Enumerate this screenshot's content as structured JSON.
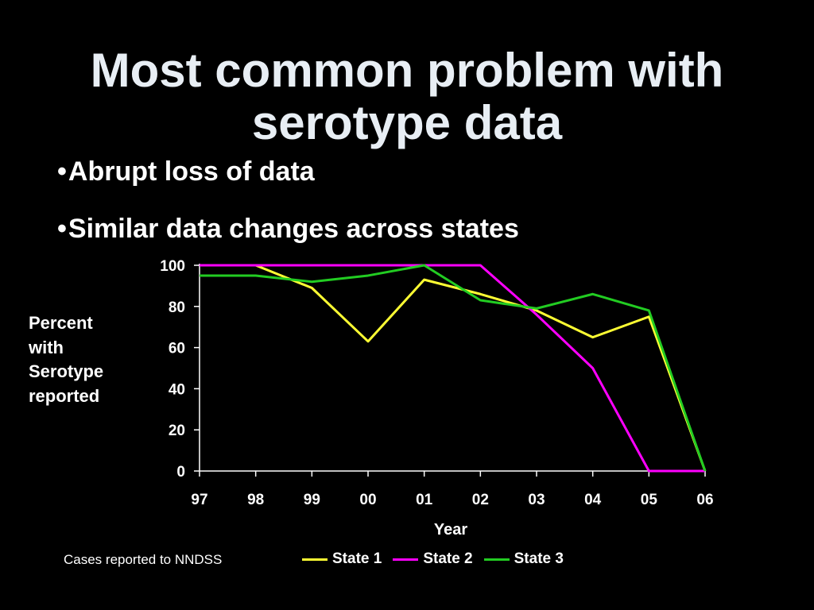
{
  "slide": {
    "title_line1": "Most common problem with",
    "title_line2": "serotype data",
    "bullets": [
      "Abrupt loss of data",
      "Similar data changes across states"
    ],
    "ylabel_lines": [
      "Percent",
      "with",
      "Serotype",
      "reported"
    ],
    "source_note": "Cases reported to NNDSS"
  },
  "chart_data": {
    "type": "line",
    "title": "",
    "xlabel": "Year",
    "ylabel": "Percent with Serotype reported",
    "categories": [
      "97",
      "98",
      "99",
      "00",
      "01",
      "02",
      "03",
      "04",
      "05",
      "06"
    ],
    "ylim": [
      0,
      100
    ],
    "yticks": [
      0,
      20,
      40,
      60,
      80,
      100
    ],
    "grid": false,
    "legend_position": "bottom",
    "series": [
      {
        "name": "State 1",
        "color": "#ffff33",
        "values": [
          100,
          100,
          89,
          63,
          93,
          86,
          78,
          65,
          75,
          0
        ]
      },
      {
        "name": "State 2",
        "color": "#ff00ff",
        "values": [
          100,
          100,
          100,
          100,
          100,
          100,
          76,
          50,
          0,
          0
        ]
      },
      {
        "name": "State 3",
        "color": "#22cc22",
        "values": [
          95,
          95,
          92,
          95,
          100,
          83,
          79,
          86,
          78,
          0
        ]
      }
    ]
  }
}
